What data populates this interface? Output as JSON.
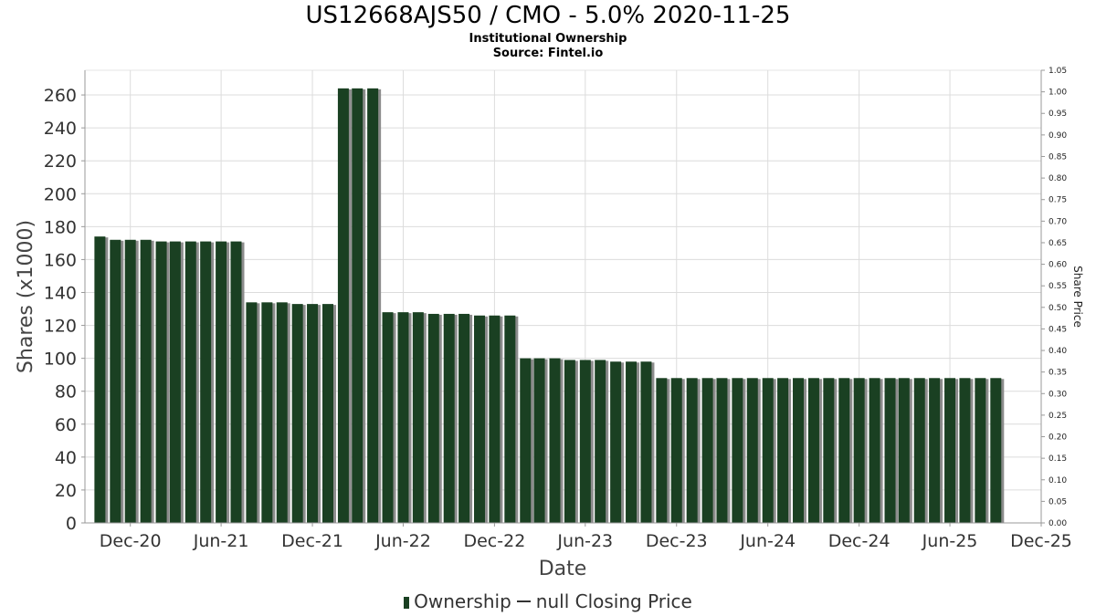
{
  "header": {
    "title": "US12668AJS50 / CMO - 5.0% 2020-11-25",
    "subtitle1": "Institutional Ownership",
    "subtitle2": "Source: Fintel.io"
  },
  "legend": {
    "item1": "Ownership",
    "item2": "null Closing Price"
  },
  "colors": {
    "bar": "#1a4022",
    "bar_shadow": "#8c8c8c",
    "grid": "#dcdcdc",
    "axis": "#999999"
  },
  "chart_data": {
    "type": "bar",
    "title": "US12668AJS50 / CMO - 5.0% 2020-11-25",
    "xlabel": "Date",
    "ylabel": "Shares (x1000)",
    "y2label": "Share Price",
    "ylim": [
      0,
      275
    ],
    "y2lim": [
      0,
      1.05
    ],
    "xlim": [
      "2020-09-01",
      "2025-12-01"
    ],
    "grid": true,
    "legend_position": "bottom",
    "yticks": [
      0,
      20,
      40,
      60,
      80,
      100,
      120,
      140,
      160,
      180,
      200,
      220,
      240,
      260
    ],
    "y2ticks": [
      "0.00",
      "0.05",
      "0.10",
      "0.15",
      "0.20",
      "0.25",
      "0.30",
      "0.35",
      "0.40",
      "0.45",
      "0.50",
      "0.55",
      "0.60",
      "0.65",
      "0.70",
      "0.75",
      "0.80",
      "0.85",
      "0.90",
      "0.95",
      "1.00",
      "1.05"
    ],
    "xticks": [
      {
        "label": "Dec-20",
        "date": "2020-12-01"
      },
      {
        "label": "Jun-21",
        "date": "2021-06-01"
      },
      {
        "label": "Dec-21",
        "date": "2021-12-01"
      },
      {
        "label": "Jun-22",
        "date": "2022-06-01"
      },
      {
        "label": "Dec-22",
        "date": "2022-12-01"
      },
      {
        "label": "Jun-23",
        "date": "2023-06-01"
      },
      {
        "label": "Dec-23",
        "date": "2023-12-01"
      },
      {
        "label": "Jun-24",
        "date": "2024-06-01"
      },
      {
        "label": "Dec-24",
        "date": "2024-12-01"
      },
      {
        "label": "Jun-25",
        "date": "2025-06-01"
      },
      {
        "label": "Dec-25",
        "date": "2025-12-01"
      }
    ],
    "series": [
      {
        "name": "Ownership",
        "dates": [
          "2020-10-01",
          "2020-11-01",
          "2020-12-01",
          "2021-01-01",
          "2021-02-01",
          "2021-03-01",
          "2021-04-01",
          "2021-05-01",
          "2021-06-01",
          "2021-07-01",
          "2021-08-01",
          "2021-09-01",
          "2021-10-01",
          "2021-11-01",
          "2021-12-01",
          "2022-01-01",
          "2022-02-01",
          "2022-03-01",
          "2022-04-01",
          "2022-05-01",
          "2022-06-01",
          "2022-07-01",
          "2022-08-01",
          "2022-09-01",
          "2022-10-01",
          "2022-11-01",
          "2022-12-01",
          "2023-01-01",
          "2023-02-01",
          "2023-03-01",
          "2023-04-01",
          "2023-05-01",
          "2023-06-01",
          "2023-07-01",
          "2023-08-01",
          "2023-09-01",
          "2023-10-01",
          "2023-11-01",
          "2023-12-01",
          "2024-01-01",
          "2024-02-01",
          "2024-03-01",
          "2024-04-01",
          "2024-05-01",
          "2024-06-01",
          "2024-07-01",
          "2024-08-01",
          "2024-09-01",
          "2024-10-01",
          "2024-11-01",
          "2024-12-01",
          "2025-01-01",
          "2025-02-01",
          "2025-03-01",
          "2025-04-01",
          "2025-05-01",
          "2025-06-01",
          "2025-07-01",
          "2025-08-01",
          "2025-09-01"
        ],
        "values": [
          174,
          172,
          172,
          172,
          171,
          171,
          171,
          171,
          171,
          171,
          134,
          134,
          134,
          133,
          133,
          133,
          264,
          264,
          264,
          128,
          128,
          128,
          127,
          127,
          127,
          126,
          126,
          126,
          100,
          100,
          100,
          99,
          99,
          99,
          98,
          98,
          98,
          88,
          88,
          88,
          88,
          88,
          88,
          88,
          88,
          88,
          88,
          88,
          88,
          88,
          88,
          88,
          88,
          88,
          88,
          88,
          88,
          88,
          88,
          88
        ]
      },
      {
        "name": "null Closing Price",
        "values": []
      }
    ]
  }
}
